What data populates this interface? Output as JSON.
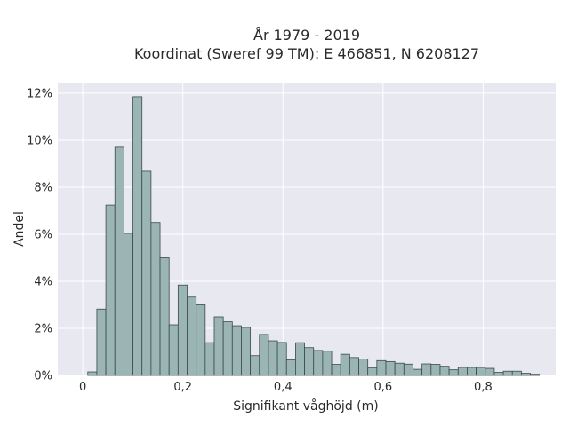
{
  "chart_data": {
    "type": "bar",
    "title_line1": "År 1979 - 2019",
    "title_line2": "Koordinat (Sweref 99 TM): E 466851, N 6208127",
    "xlabel": "Signifikant våghöjd (m)",
    "ylabel": "Andel",
    "xlim": [
      -0.05,
      0.945
    ],
    "ylim": [
      0,
      0.1245
    ],
    "bin_width": 0.01805,
    "bin_start": 0.01,
    "values": [
      0.0015,
      0.0282,
      0.0724,
      0.097,
      0.0604,
      0.1185,
      0.0868,
      0.065,
      0.05,
      0.0215,
      0.0384,
      0.0333,
      0.03,
      0.0139,
      0.0249,
      0.0228,
      0.0211,
      0.0204,
      0.0084,
      0.0174,
      0.0147,
      0.014,
      0.0066,
      0.0139,
      0.0118,
      0.0106,
      0.0103,
      0.0047,
      0.009,
      0.0076,
      0.007,
      0.0033,
      0.0063,
      0.0059,
      0.0052,
      0.0048,
      0.0026,
      0.0049,
      0.0047,
      0.0039,
      0.0024,
      0.0034,
      0.0034,
      0.0034,
      0.003,
      0.0013,
      0.0018,
      0.0018,
      0.0009,
      0.0005
    ],
    "x_ticks": [
      {
        "value": 0,
        "label": "0"
      },
      {
        "value": 0.2,
        "label": "0,2"
      },
      {
        "value": 0.4,
        "label": "0,4"
      },
      {
        "value": 0.6,
        "label": "0,6"
      },
      {
        "value": 0.8,
        "label": "0,8"
      }
    ],
    "y_ticks": [
      {
        "value": 0,
        "label": "0%"
      },
      {
        "value": 0.02,
        "label": "2%"
      },
      {
        "value": 0.04,
        "label": "4%"
      },
      {
        "value": 0.06,
        "label": "6%"
      },
      {
        "value": 0.08,
        "label": "8%"
      },
      {
        "value": 0.1,
        "label": "10%"
      },
      {
        "value": 0.12,
        "label": "12%"
      }
    ],
    "grid": true,
    "colors": {
      "plot_bg": "#e8e8f0",
      "grid": "#ffffff",
      "bar_fill": "#9ab5b4",
      "bar_edge": "#3c4a4a"
    }
  }
}
